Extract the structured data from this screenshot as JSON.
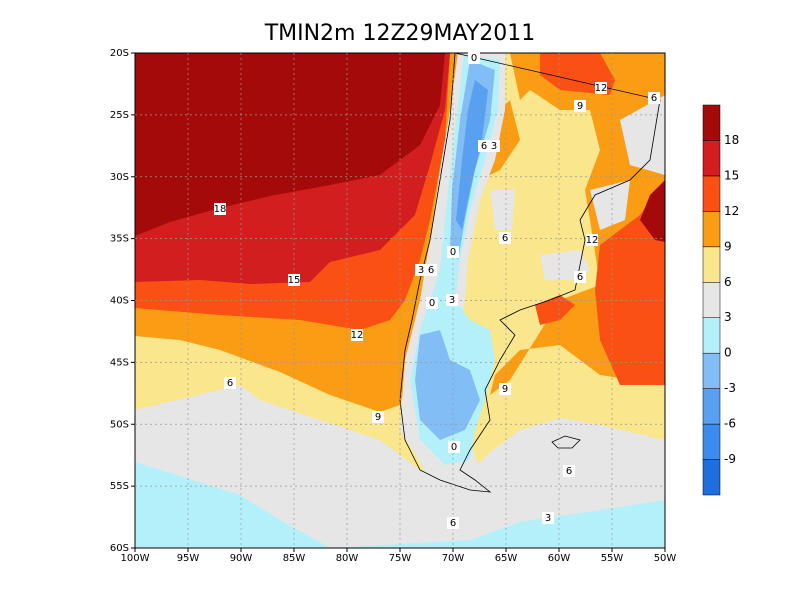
{
  "title": "TMIN2m  12Z29MAY2011",
  "lon_labels": [
    "100W",
    "95W",
    "90W",
    "85W",
    "80W",
    "75W",
    "70W",
    "65W",
    "60W",
    "55W",
    "50W"
  ],
  "lat_labels": [
    "20S",
    "25S",
    "30S",
    "35S",
    "40S",
    "45S",
    "50S",
    "55S",
    "60S"
  ],
  "colorbar": {
    "labels": [
      "-9",
      "-6",
      "-3",
      "0",
      "3",
      "6",
      "9",
      "12",
      "15",
      "18"
    ],
    "colors": [
      "#1e6ee0",
      "#3c8cf0",
      "#5aa0f0",
      "#82bef5",
      "#b4f0fa",
      "#e6e6e6",
      "#fae68c",
      "#fa9c14",
      "#fa5014",
      "#d21e1e",
      "#a50a0a"
    ]
  },
  "contour_labels": [
    "18",
    "15",
    "12",
    "9",
    "6",
    "6",
    "3",
    "6",
    "9",
    "6",
    "6",
    "12",
    "9",
    "12",
    "6",
    "3",
    "0",
    "6",
    "3",
    "0",
    "6",
    "3",
    "0",
    "0"
  ]
}
